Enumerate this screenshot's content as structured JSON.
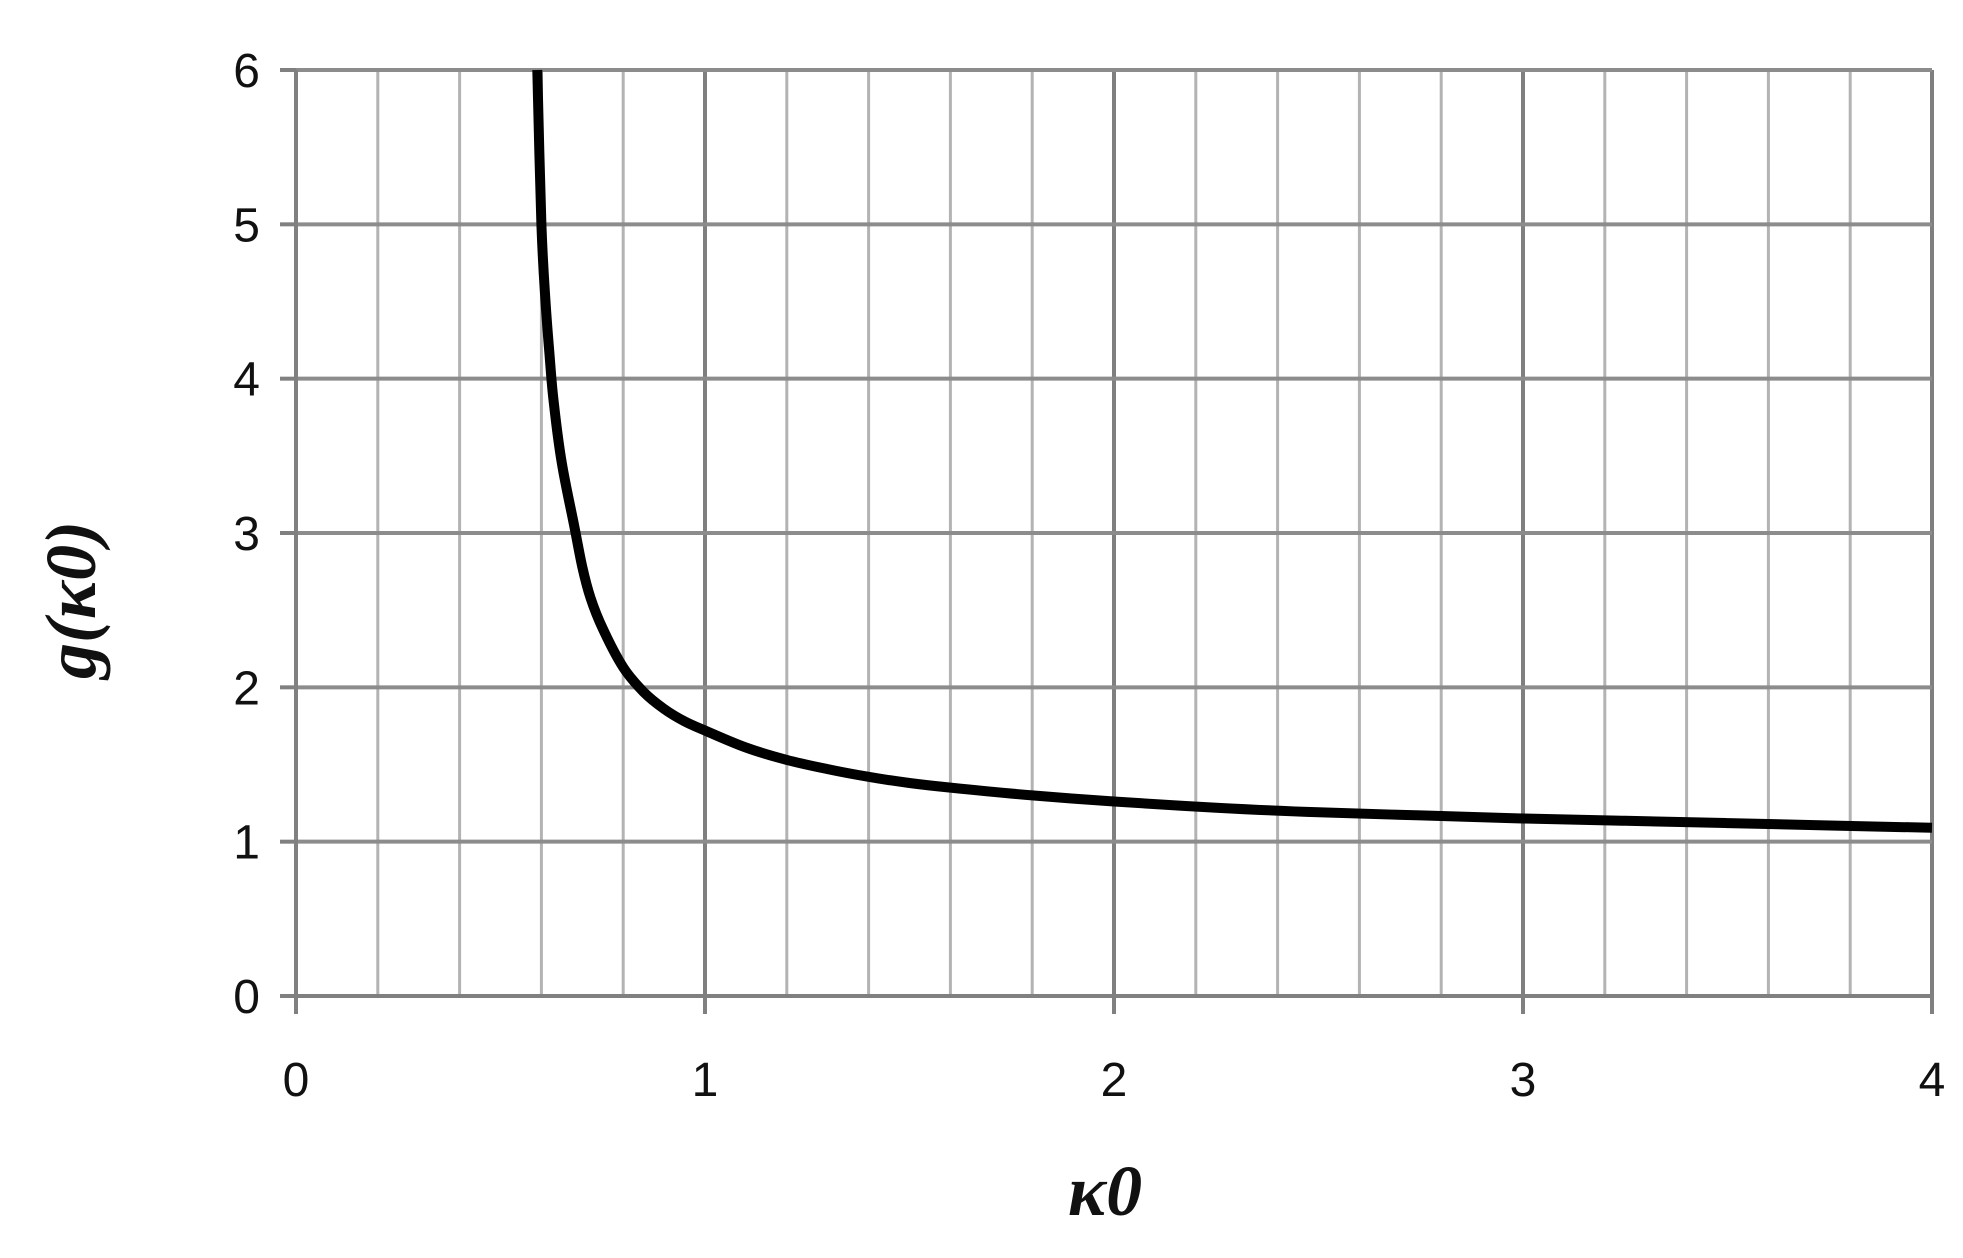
{
  "chart_data": {
    "type": "line",
    "title": "",
    "xlabel": "κ0",
    "ylabel": "g(κ0)",
    "xlim": [
      0,
      4
    ],
    "ylim": [
      0,
      6
    ],
    "x_ticks": [
      "0",
      "1",
      "2",
      "3",
      "4"
    ],
    "y_ticks": [
      "0",
      "1",
      "2",
      "3",
      "4",
      "5",
      "6"
    ],
    "grid": true,
    "grid_minor_x_step": 0.2,
    "grid_major_y_step": 1,
    "series": [
      {
        "color": "#000000",
        "x": [
          0.59,
          0.6,
          0.61,
          0.62,
          0.63,
          0.65,
          0.68,
          0.7,
          0.72,
          0.75,
          0.8,
          0.85,
          0.9,
          0.95,
          1.0,
          1.1,
          1.2,
          1.3,
          1.4,
          1.5,
          1.6,
          1.8,
          2.0,
          2.25,
          2.5,
          2.75,
          3.0,
          3.25,
          3.5,
          3.75,
          4.0
        ],
        "y": [
          6.0,
          5.0,
          4.5,
          4.15,
          3.85,
          3.45,
          3.05,
          2.78,
          2.58,
          2.38,
          2.13,
          1.97,
          1.86,
          1.78,
          1.72,
          1.61,
          1.53,
          1.47,
          1.42,
          1.38,
          1.35,
          1.3,
          1.26,
          1.22,
          1.19,
          1.17,
          1.15,
          1.135,
          1.12,
          1.105,
          1.09
        ]
      }
    ]
  }
}
